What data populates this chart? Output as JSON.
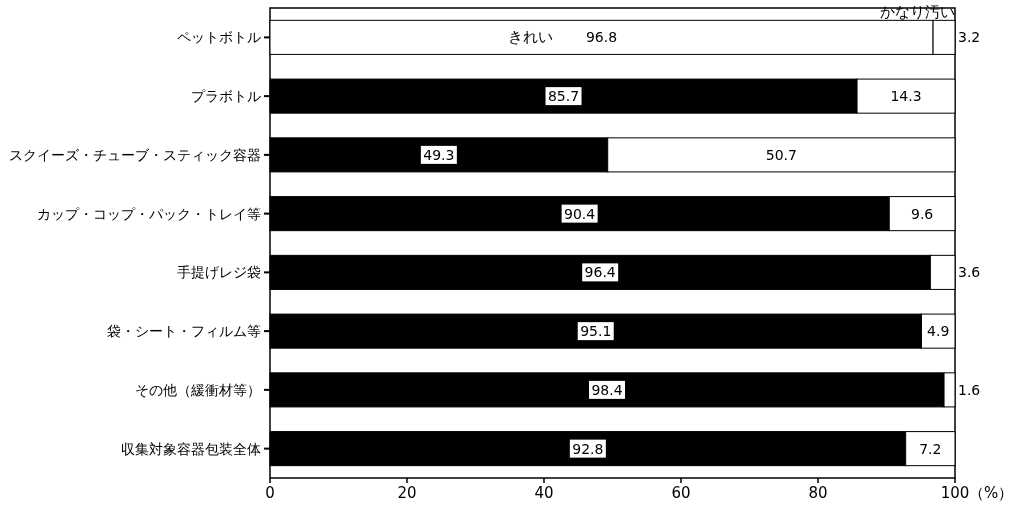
{
  "chart_data": {
    "type": "bar",
    "orientation": "horizontal",
    "stacked": true,
    "categories": [
      "ペットボトル",
      "プラボトル",
      "スクイーズ・チューブ・スティック容器",
      "カップ・コップ・パック・トレイ等",
      "手提げレジ袋",
      "袋・シート・フィルム等",
      "その他（緩衝材等）",
      "収集対象容器包装全体"
    ],
    "series": [
      {
        "name": "きれい",
        "color": "#000000",
        "colors": [
          "#ffffff",
          "#000000",
          "#000000",
          "#000000",
          "#000000",
          "#000000",
          "#000000",
          "#000000"
        ],
        "values": [
          96.8,
          85.7,
          49.3,
          90.4,
          96.4,
          95.1,
          98.4,
          92.8
        ]
      },
      {
        "name": "かなり汚い",
        "color": "#ffffff",
        "values": [
          3.2,
          14.3,
          50.7,
          9.6,
          3.6,
          4.9,
          1.6,
          7.2
        ]
      }
    ],
    "xlim": [
      0,
      100
    ],
    "xticks": [
      0,
      20,
      40,
      60,
      80,
      100
    ],
    "xlabel": "（%）",
    "data_labels": true,
    "grid": false
  }
}
